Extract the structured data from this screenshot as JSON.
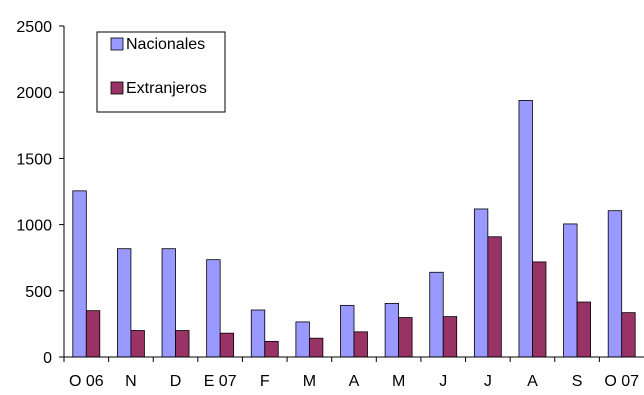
{
  "chart_data": {
    "type": "bar",
    "title": "",
    "xlabel": "",
    "ylabel": "",
    "ylim": [
      0,
      2500
    ],
    "yticks": [
      0,
      500,
      1000,
      1500,
      2000,
      2500
    ],
    "grid": false,
    "legend_position": "top-left",
    "categories": [
      "O 06",
      "N",
      "D",
      "E 07",
      "F",
      "M",
      "A",
      "M",
      "J",
      "J",
      "A",
      "S",
      "O 07"
    ],
    "series": [
      {
        "name": "Nacionales",
        "color": "#9999ff",
        "values": [
          1255,
          818,
          818,
          735,
          355,
          265,
          390,
          405,
          640,
          1118,
          1938,
          1005,
          1105
        ]
      },
      {
        "name": "Extranjeros",
        "color": "#993366",
        "values": [
          350,
          200,
          200,
          180,
          118,
          142,
          190,
          298,
          305,
          908,
          718,
          415,
          335
        ]
      }
    ]
  }
}
